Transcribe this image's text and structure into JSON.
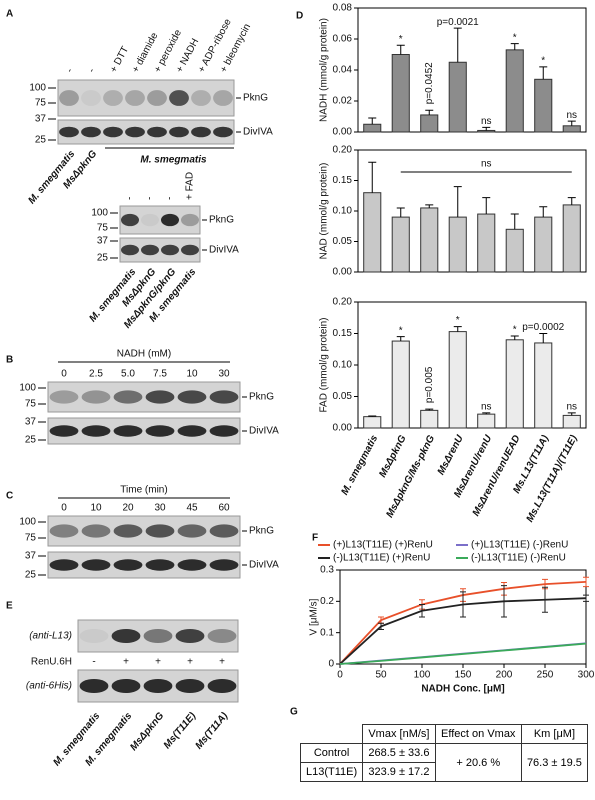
{
  "chart_data": [
    {
      "type": "bar",
      "panel": "D",
      "ylabel": "NADH (mmol/g protein)",
      "color": "#8c8c8c",
      "ylim": [
        0,
        0.08
      ],
      "yticks": [
        {
          "value": 0,
          "label": "0.00"
        },
        0.02,
        0.04,
        0.06,
        0.08
      ],
      "values": [
        0.005,
        0.05,
        0.011,
        0.045,
        0.001,
        0.053,
        0.034,
        0.004
      ],
      "errors": [
        0.004,
        0.006,
        0.003,
        0.022,
        0.002,
        0.004,
        0.008,
        0.003
      ],
      "annotations": [
        null,
        "*",
        "p=0.0452",
        "p=0.0021",
        "ns",
        "*",
        "*",
        "ns"
      ]
    },
    {
      "type": "bar",
      "ylabel": "NAD  (mmol/g protein)",
      "color": "#c8c8c8",
      "ylim": [
        0,
        0.2
      ],
      "yticks": [
        {
          "value": 0,
          "label": "0.00"
        },
        0.05,
        {
          "value": 0.1,
          "label": "0.10"
        },
        0.15,
        {
          "value": 0.2,
          "label": "0.20"
        }
      ],
      "values": [
        0.13,
        0.09,
        0.105,
        0.09,
        0.095,
        0.07,
        0.09,
        0.11
      ],
      "errors": [
        0.05,
        0.015,
        0.005,
        0.05,
        0.027,
        0.025,
        0.017,
        0.012
      ],
      "bracket_label": "ns"
    },
    {
      "type": "bar",
      "ylabel": "FAD (mmol/g protein)",
      "color": "#ebebeb",
      "ylim": [
        0,
        0.2
      ],
      "yticks": [
        {
          "value": 0,
          "label": "0.00"
        },
        0.05,
        {
          "value": 0.1,
          "label": "0.10"
        },
        0.15,
        {
          "value": 0.2,
          "label": "0.20"
        }
      ],
      "categories": [
        "M. smegmatis",
        "MsΔpknG",
        "MsΔpknG/Ms-pknG",
        "MsΔrenU",
        "MsΔrenU/renU",
        "MsΔrenU/renUEAD",
        "Ms.L13(T11A)",
        "Ms.L13(T11A)/(T11E)"
      ],
      "values": [
        0.018,
        0.138,
        0.028,
        0.153,
        0.022,
        0.14,
        0.135,
        0.02
      ],
      "errors": [
        0.001,
        0.007,
        0.002,
        0.008,
        0.002,
        0.006,
        0.015,
        0.004
      ],
      "annotations": [
        null,
        "*",
        "p=0.005",
        "*",
        "ns",
        "*",
        "p=0.0002",
        "ns"
      ]
    },
    {
      "type": "line",
      "panel": "F",
      "xlabel": "NADH Conc. [μM]",
      "ylabel": "V [μM/s]",
      "x": [
        0,
        50,
        100,
        150,
        200,
        250,
        300
      ],
      "xlim": [
        0,
        300
      ],
      "xticks": [
        0,
        50,
        100,
        150,
        200,
        250,
        300
      ],
      "ylim": [
        0,
        0.3
      ],
      "yticks": [
        0,
        0.1,
        0.2,
        0.3
      ],
      "series": [
        {
          "name": "(+)L13(T11E) (+)RenU",
          "color": "#e8502a",
          "values": [
            0,
            0.14,
            0.19,
            0.22,
            0.24,
            0.255,
            0.262
          ],
          "errors": [
            null,
            0.01,
            0.015,
            0.02,
            0.02,
            0.015,
            0.015
          ]
        },
        {
          "name": "(-)L13(T11E) (+)RenU",
          "color": "#222222",
          "values": [
            0,
            0.12,
            0.17,
            0.19,
            0.2,
            0.205,
            0.21
          ],
          "errors": [
            null,
            0.01,
            0.02,
            0.04,
            0.05,
            0.04,
            0.01
          ]
        },
        {
          "name": "(+)L13(T11E) (-)RenU",
          "color": "#7b6fc9",
          "values": [
            0,
            0.011,
            0.022,
            0.033,
            0.044,
            0.055,
            0.066
          ]
        },
        {
          "name": "(-)L13(T11E) (-)RenU",
          "color": "#3aaa5a",
          "values": [
            0,
            0.01,
            0.021,
            0.032,
            0.043,
            0.054,
            0.065
          ]
        }
      ]
    }
  ],
  "blot_a1": {
    "label": "A",
    "lanes": [
      "-",
      "-",
      "+ DTT",
      "+ diamide",
      "+ peroxide",
      "+ NADH",
      "+ ADP-ribose",
      "+ bleomycin"
    ],
    "markers": [
      "100",
      "75",
      "37",
      "25"
    ],
    "bands": [
      "PknG",
      "DivIVA"
    ],
    "samples": [
      "M. smegmatis",
      "MsΔpknG"
    ],
    "group": "M. smegmatis"
  },
  "blot_a2": {
    "lanes": [
      "-",
      "-",
      "-",
      "+ FAD"
    ],
    "markers": [
      "100",
      "75",
      "37",
      "25"
    ],
    "bands": [
      "PknG",
      "DivIVA"
    ],
    "samples": [
      "M. smegmatis",
      "MsΔpknG",
      "MsΔpknG/pknG",
      "M. smegmatis"
    ]
  },
  "blot_b": {
    "label": "B",
    "header": "NADH (mM)",
    "lanes": [
      "0",
      "2.5",
      "5.0",
      "7.5",
      "10",
      "30"
    ],
    "markers": [
      "100",
      "75",
      "37",
      "25"
    ],
    "bands": [
      "PknG",
      "DivIVA"
    ]
  },
  "blot_c": {
    "label": "C",
    "header": "Time (min)",
    "lanes": [
      "0",
      "10",
      "20",
      "30",
      "45",
      "60"
    ],
    "markers": [
      "100",
      "75",
      "37",
      "25"
    ],
    "bands": [
      "PknG",
      "DivIVA"
    ]
  },
  "blot_e": {
    "label": "E",
    "antibodies": [
      "(anti-L13)",
      "(anti-6His)"
    ],
    "row_label": "RenU.6H",
    "lanes": [
      "-",
      "+",
      "+",
      "+",
      "+"
    ],
    "samples": [
      "M. smegmatis",
      "M. smegmatis",
      "MsΔpknG",
      "Ms(T11E)",
      "Ms(T11A)"
    ]
  },
  "table": {
    "label": "G",
    "header": [
      "Vmax [nM/s]",
      "Effect on Vmax",
      "Km [μM]"
    ],
    "rows": [
      [
        "Control",
        "268.5 ± 33.6",
        "+ 20.6 %",
        "76.3 ± 19.5"
      ],
      [
        "L13(T11E)",
        "323.9 ± 17.2"
      ]
    ]
  }
}
